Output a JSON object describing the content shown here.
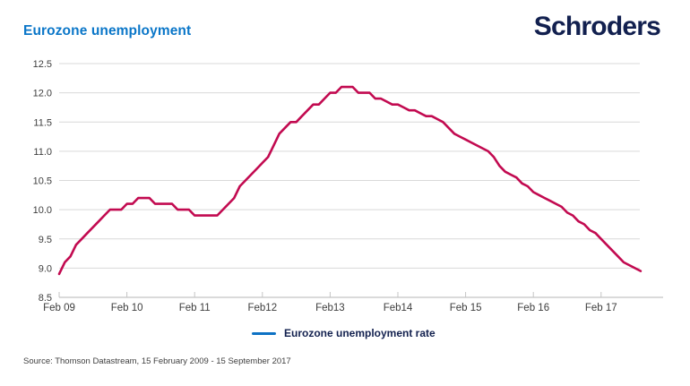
{
  "header": {
    "title": "Eurozone unemployment",
    "logo": "Schroders"
  },
  "legend": {
    "label": "Eurozone unemployment rate",
    "marker_color": "#0e72c4"
  },
  "source": "Source: Thomson Datastream, 15 February 2009 - 15 September 2017",
  "colors": {
    "title_blue": "#0a76c8",
    "logo_navy": "#12204f",
    "line_crimson": "#c20a50",
    "gridline_gray": "#d9d9d9",
    "axis_gray": "#c4c4c4",
    "axis_text": "#3d3d3d"
  },
  "chart_data": {
    "type": "line",
    "title": "Eurozone unemployment",
    "xlabel": "",
    "ylabel": "",
    "ylim": [
      8.5,
      12.5
    ],
    "y_ticks": [
      8.5,
      9.0,
      9.5,
      10.0,
      10.5,
      11.0,
      11.5,
      12.0,
      12.5
    ],
    "x_tick_labels": [
      "Feb 09",
      "Feb 10",
      "Feb 11",
      "Feb12",
      "Feb13",
      "Feb14",
      "Feb 15",
      "Feb 16",
      "Feb 17"
    ],
    "x_range": [
      "2009-02",
      "2017-09"
    ],
    "frequency": "monthly",
    "grid": "horizontal",
    "legend_position": "bottom-center",
    "series": [
      {
        "name": "Eurozone unemployment rate",
        "color": "#c20a50",
        "values": [
          8.9,
          9.1,
          9.2,
          9.4,
          9.5,
          9.6,
          9.7,
          9.8,
          9.9,
          10.0,
          10.0,
          10.0,
          10.1,
          10.1,
          10.2,
          10.2,
          10.2,
          10.1,
          10.1,
          10.1,
          10.1,
          10.0,
          10.0,
          10.0,
          9.9,
          9.9,
          9.9,
          9.9,
          9.9,
          10.0,
          10.1,
          10.2,
          10.4,
          10.5,
          10.6,
          10.7,
          10.8,
          10.9,
          11.1,
          11.3,
          11.4,
          11.5,
          11.5,
          11.6,
          11.7,
          11.8,
          11.8,
          11.9,
          12.0,
          12.0,
          12.1,
          12.1,
          12.1,
          12.0,
          12.0,
          12.0,
          11.9,
          11.9,
          11.85,
          11.8,
          11.8,
          11.75,
          11.7,
          11.7,
          11.65,
          11.6,
          11.6,
          11.55,
          11.5,
          11.4,
          11.3,
          11.25,
          11.2,
          11.15,
          11.1,
          11.05,
          11.0,
          10.9,
          10.75,
          10.65,
          10.6,
          10.55,
          10.45,
          10.4,
          10.3,
          10.25,
          10.2,
          10.15,
          10.1,
          10.05,
          9.95,
          9.9,
          9.8,
          9.75,
          9.65,
          9.6,
          9.5,
          9.4,
          9.3,
          9.2,
          9.1,
          9.05,
          9.0,
          8.95
        ]
      }
    ]
  }
}
